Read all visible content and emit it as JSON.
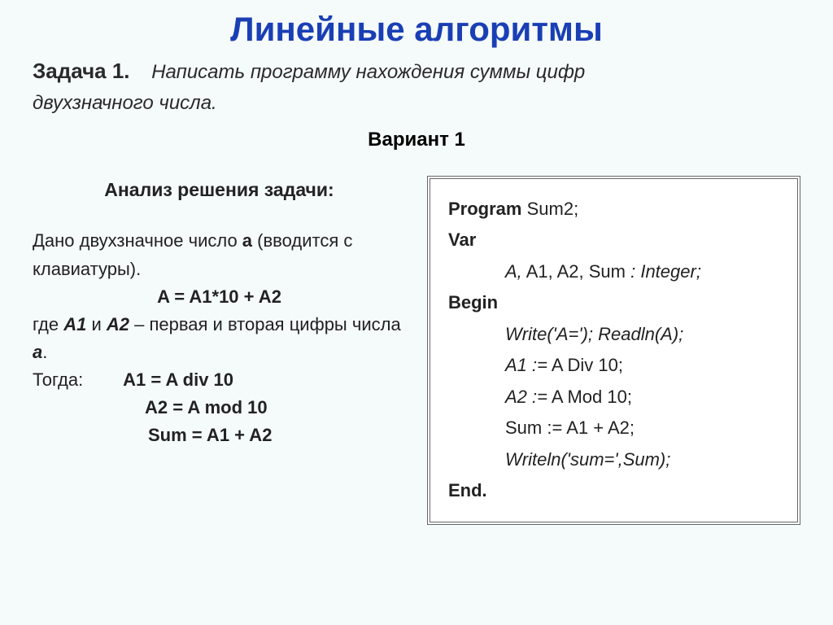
{
  "title": "Линейные алгоритмы",
  "task": {
    "label": "Задача 1.",
    "text_line1": "Написать программу нахождения суммы цифр",
    "text_line2": "двухзначного числа."
  },
  "variant": "Вариант 1",
  "analysis": {
    "title": "Анализ решения задачи:",
    "intro_a": "Дано двухзначное число ",
    "intro_bold_a": "а",
    "intro_b": " (вводится с клавиатуры).",
    "formula1": "A = A1*10 + A2",
    "where_a": "где ",
    "where_a1": "А1",
    "where_and": " и ",
    "where_a2": "А2",
    "where_b": " – первая и вторая цифры числа ",
    "where_var": "а",
    "where_dot": ".",
    "then": "Тогда:",
    "f2": "A1 = A div 10",
    "f3": "A2 = A mod 10",
    "f4": "Sum = A1 + A2"
  },
  "code": {
    "l1_kw": "Program",
    "l1_rest": "   Sum2;",
    "l2": "Var",
    "l3_a": "A,",
    "l3_b": " A1, A2, Sum ",
    "l3_c": ": Integer;",
    "l4": "Begin",
    "l5": "Write('A='); Readln(A);",
    "l6_a": "A1 :=",
    "l6_b": " A Div 10;",
    "l7_a": "A2 :=",
    "l7_b": " A Mod 10;",
    "l8": "Sum := A1 + A2;",
    "l9": "Writeln('sum=',Sum);",
    "l10": "End."
  },
  "colors": {
    "title": "#1a3fb5",
    "background": "#f5fafa",
    "text": "#222222",
    "box_border": "#666666",
    "box_bg": "#ffffff"
  },
  "typography": {
    "title_fontsize": 42,
    "body_fontsize": 22,
    "task_fontsize": 24
  }
}
